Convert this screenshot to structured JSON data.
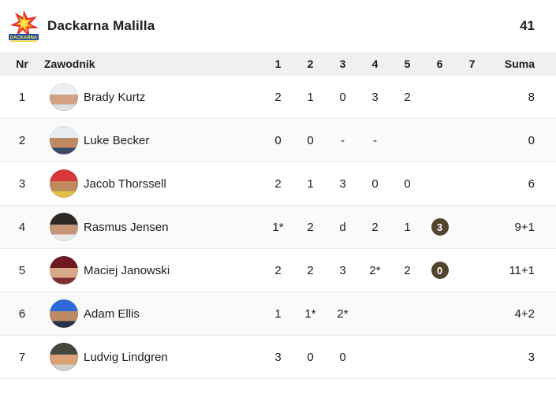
{
  "header": {
    "team_name": "Dackarna Malilla",
    "total_score": "41",
    "logo_text": "DACKARNA"
  },
  "table": {
    "columns": [
      "Nr",
      "Zawodnik",
      "1",
      "2",
      "3",
      "4",
      "5",
      "6",
      "7",
      "Suma"
    ],
    "rows": [
      {
        "nr": "1",
        "name": "Brady Kurtz",
        "heats": [
          "2",
          "1",
          "0",
          "3",
          "2",
          "",
          ""
        ],
        "suma": "8",
        "avatar": {
          "cap": "#edeff1",
          "face": "#d2a183",
          "shirt": "#d9dee3"
        }
      },
      {
        "nr": "2",
        "name": "Luke Becker",
        "heats": [
          "0",
          "0",
          "-",
          "-",
          "",
          "",
          ""
        ],
        "suma": "0",
        "avatar": {
          "cap": "#e9ecef",
          "face": "#c08a61",
          "shirt": "#3a4a66"
        }
      },
      {
        "nr": "3",
        "name": "Jacob Thorssell",
        "heats": [
          "2",
          "1",
          "3",
          "0",
          "0",
          "",
          ""
        ],
        "suma": "6",
        "avatar": {
          "cap": "#d8373a",
          "face": "#c08a61",
          "shirt": "#e0c04a"
        }
      },
      {
        "nr": "4",
        "name": "Rasmus Jensen",
        "heats": [
          "1*",
          "2",
          "d",
          "2",
          "1",
          {
            "v": "3",
            "badge": true
          },
          ""
        ],
        "suma": "9+1",
        "avatar": {
          "cap": "#2b2825",
          "face": "#c79677",
          "shirt": "#e9e9e9"
        }
      },
      {
        "nr": "5",
        "name": "Maciej Janowski",
        "heats": [
          "2",
          "2",
          "3",
          "2*",
          "2",
          {
            "v": "0",
            "badge": true
          },
          ""
        ],
        "suma": "11+1",
        "avatar": {
          "cap": "#6e1a20",
          "face": "#d7a98b",
          "shirt": "#7e2f33"
        }
      },
      {
        "nr": "6",
        "name": "Adam Ellis",
        "heats": [
          "1",
          "1*",
          "2*",
          "",
          "",
          "",
          ""
        ],
        "suma": "4+2",
        "avatar": {
          "cap": "#2f6bd8",
          "face": "#bd8a64",
          "shirt": "#25324a"
        }
      },
      {
        "nr": "7",
        "name": "Ludvig Lindgren",
        "heats": [
          "3",
          "0",
          "0",
          "",
          "",
          "",
          ""
        ],
        "suma": "3",
        "avatar": {
          "cap": "#43483f",
          "face": "#dca077",
          "shirt": "#ccd0c6"
        }
      }
    ]
  },
  "colors": {
    "badge_bg": "#54432d",
    "badge_text": "#ffffff",
    "table_head_bg": "#f0f0f0",
    "alt_row_bg": "#fafafa",
    "row_border": "#e9e9e9",
    "text": "#1d1d1d",
    "logo_star_red": "#e8232a",
    "logo_star_orange": "#f9a11b",
    "logo_text_blue": "#1b4fa0"
  }
}
